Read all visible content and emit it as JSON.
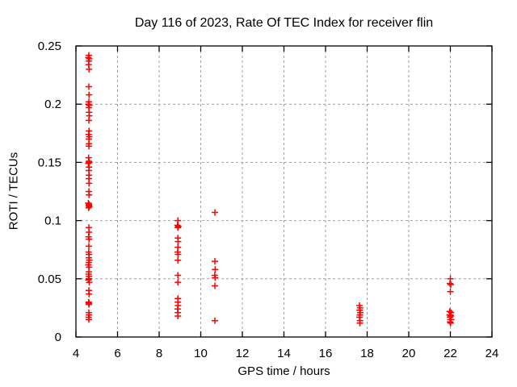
{
  "chart_data": {
    "type": "scatter",
    "title": "Day 116 of 2023, Rate Of TEC Index for receiver flin",
    "xlabel": "GPS time / hours",
    "ylabel": "ROTI / TECUs",
    "xlim": [
      4,
      24
    ],
    "ylim": [
      0,
      0.25
    ],
    "xticks": [
      4,
      6,
      8,
      10,
      12,
      14,
      16,
      18,
      20,
      22,
      24
    ],
    "xtick_labels": [
      "4",
      "6",
      "8",
      "10",
      "12",
      "14",
      "16",
      "18",
      "20",
      "22",
      "24"
    ],
    "yticks": [
      0,
      0.05,
      0.1,
      0.15,
      0.2,
      0.25
    ],
    "ytick_labels": [
      "0",
      "0.05",
      "0.1",
      "0.15",
      "0.2",
      "0.25"
    ],
    "grid": true,
    "legend": "none",
    "marker": "plus",
    "marker_color": "#ff0000",
    "grid_color": "#9e9e9e",
    "frame_color": "#000000",
    "background_color": "#ffffff",
    "points": [
      [
        4.62,
        0.242
      ],
      [
        4.6,
        0.24
      ],
      [
        4.64,
        0.239
      ],
      [
        4.62,
        0.237
      ],
      [
        4.61,
        0.234
      ],
      [
        4.63,
        0.23
      ],
      [
        4.62,
        0.215
      ],
      [
        4.63,
        0.208
      ],
      [
        4.62,
        0.202
      ],
      [
        4.6,
        0.2
      ],
      [
        4.64,
        0.199
      ],
      [
        4.62,
        0.197
      ],
      [
        4.63,
        0.193
      ],
      [
        4.64,
        0.19
      ],
      [
        4.62,
        0.186
      ],
      [
        4.63,
        0.177
      ],
      [
        4.61,
        0.174
      ],
      [
        4.64,
        0.172
      ],
      [
        4.62,
        0.17
      ],
      [
        4.63,
        0.166
      ],
      [
        4.62,
        0.164
      ],
      [
        4.61,
        0.154
      ],
      [
        4.62,
        0.151
      ],
      [
        4.64,
        0.15
      ],
      [
        4.6,
        0.149
      ],
      [
        4.63,
        0.146
      ],
      [
        4.62,
        0.143
      ],
      [
        4.63,
        0.139
      ],
      [
        4.62,
        0.136
      ],
      [
        4.63,
        0.132
      ],
      [
        4.62,
        0.125
      ],
      [
        4.63,
        0.122
      ],
      [
        4.6,
        0.115
      ],
      [
        4.63,
        0.114
      ],
      [
        4.62,
        0.113
      ],
      [
        4.64,
        0.112
      ],
      [
        4.61,
        0.111
      ],
      [
        4.62,
        0.094
      ],
      [
        4.63,
        0.09
      ],
      [
        4.61,
        0.086
      ],
      [
        4.63,
        0.084
      ],
      [
        4.62,
        0.078
      ],
      [
        4.61,
        0.073
      ],
      [
        4.63,
        0.071
      ],
      [
        4.62,
        0.068
      ],
      [
        4.64,
        0.066
      ],
      [
        4.62,
        0.064
      ],
      [
        4.6,
        0.062
      ],
      [
        4.63,
        0.06
      ],
      [
        4.62,
        0.056
      ],
      [
        4.61,
        0.054
      ],
      [
        4.63,
        0.052
      ],
      [
        4.62,
        0.05
      ],
      [
        4.6,
        0.049
      ],
      [
        4.64,
        0.047
      ],
      [
        4.62,
        0.04
      ],
      [
        4.63,
        0.037
      ],
      [
        4.61,
        0.03
      ],
      [
        4.63,
        0.029
      ],
      [
        4.62,
        0.028
      ],
      [
        4.62,
        0.021
      ],
      [
        4.63,
        0.019
      ],
      [
        4.61,
        0.017
      ],
      [
        4.62,
        0.015
      ],
      [
        8.9,
        0.1
      ],
      [
        8.88,
        0.096
      ],
      [
        8.92,
        0.095
      ],
      [
        8.9,
        0.094
      ],
      [
        8.9,
        0.085
      ],
      [
        8.91,
        0.082
      ],
      [
        8.9,
        0.077
      ],
      [
        8.89,
        0.073
      ],
      [
        8.91,
        0.071
      ],
      [
        8.9,
        0.066
      ],
      [
        8.9,
        0.053
      ],
      [
        8.9,
        0.047
      ],
      [
        8.9,
        0.033
      ],
      [
        8.9,
        0.03
      ],
      [
        8.91,
        0.027
      ],
      [
        8.89,
        0.024
      ],
      [
        8.9,
        0.021
      ],
      [
        8.9,
        0.018
      ],
      [
        10.68,
        0.107
      ],
      [
        10.68,
        0.065
      ],
      [
        10.69,
        0.058
      ],
      [
        10.67,
        0.053
      ],
      [
        10.69,
        0.051
      ],
      [
        10.68,
        0.044
      ],
      [
        10.68,
        0.014
      ],
      [
        17.63,
        0.027
      ],
      [
        17.66,
        0.025
      ],
      [
        17.64,
        0.023
      ],
      [
        17.67,
        0.021
      ],
      [
        17.65,
        0.019
      ],
      [
        17.63,
        0.017
      ],
      [
        17.66,
        0.014
      ],
      [
        17.65,
        0.012
      ],
      [
        22.0,
        0.05
      ],
      [
        21.98,
        0.046
      ],
      [
        22.02,
        0.045
      ],
      [
        22.0,
        0.039
      ],
      [
        21.97,
        0.022
      ],
      [
        22.03,
        0.021
      ],
      [
        22.0,
        0.019
      ],
      [
        21.96,
        0.019
      ],
      [
        22.02,
        0.018
      ],
      [
        21.98,
        0.017
      ],
      [
        22.04,
        0.015
      ],
      [
        22.0,
        0.015
      ],
      [
        21.99,
        0.013
      ],
      [
        22.01,
        0.012
      ]
    ]
  }
}
